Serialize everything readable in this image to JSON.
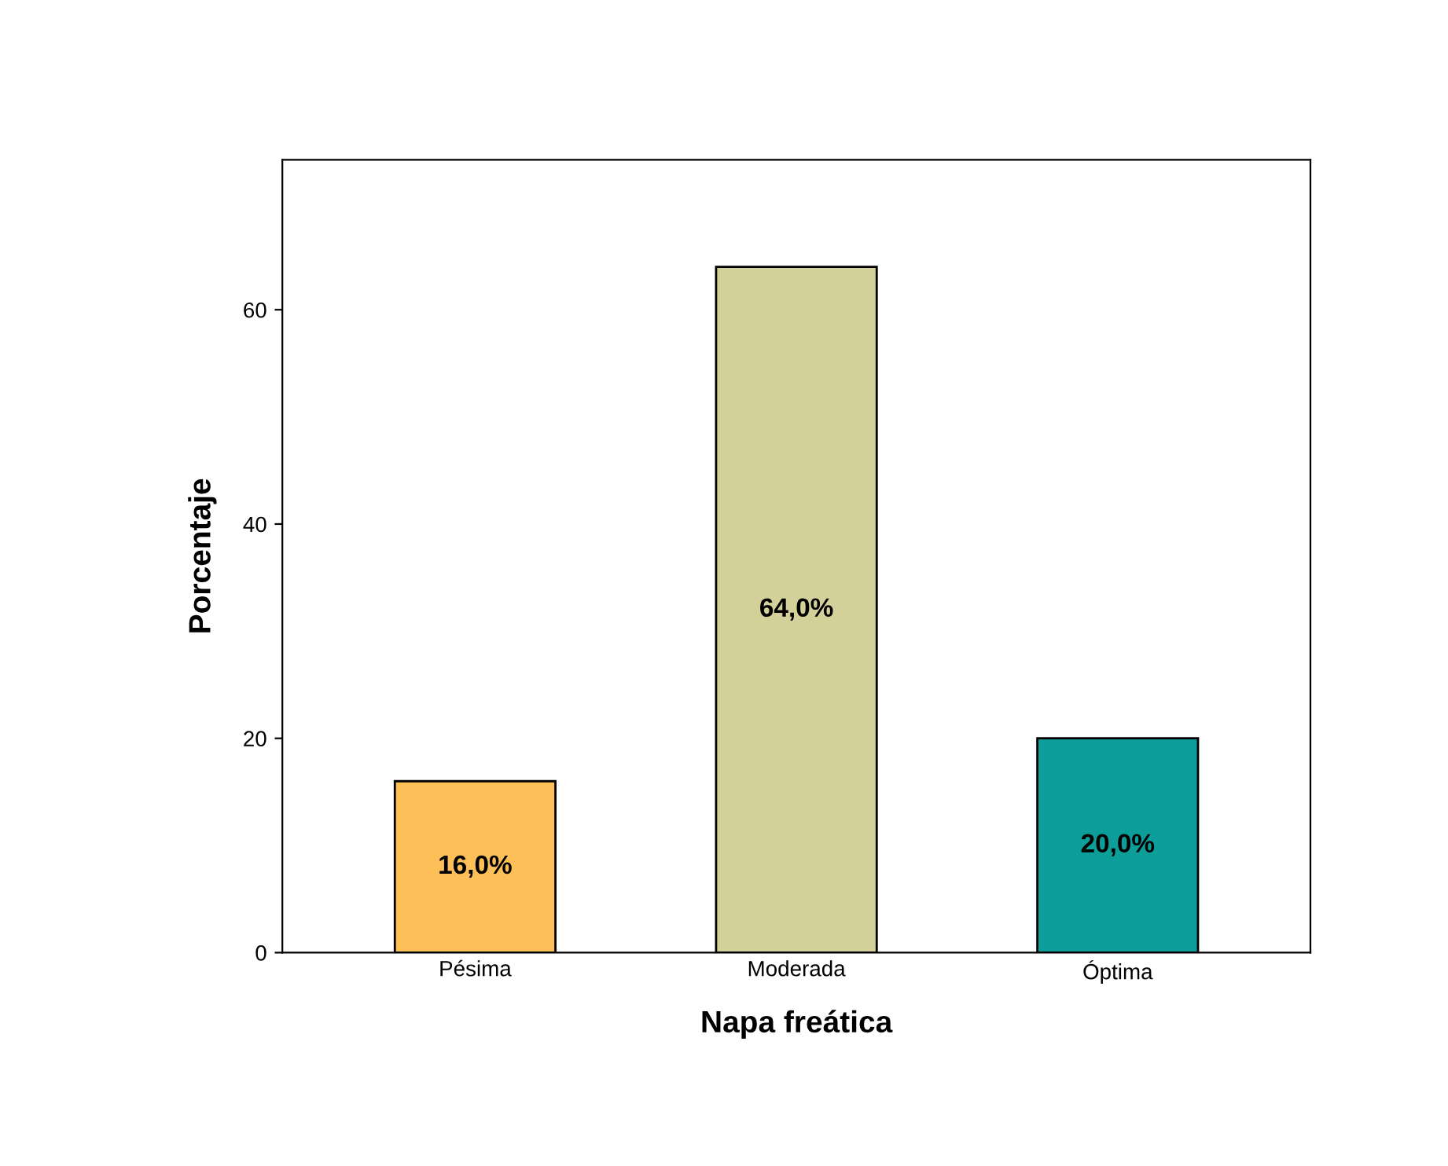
{
  "chart_data": {
    "type": "bar",
    "xlabel": "Napa freática",
    "ylabel": "Porcentaje",
    "categories": [
      "Pésima",
      "Moderada",
      "Óptima"
    ],
    "values": [
      16.0,
      64.0,
      20.0
    ],
    "colors": [
      "#fdbf57",
      "#d4d09a",
      "#0e9e9a"
    ],
    "value_labels": [
      "16,0%",
      "64,0%",
      "20,0%"
    ],
    "ylim": [
      0,
      74
    ],
    "yticks": [
      0,
      20,
      40,
      60
    ],
    "grid": false
  }
}
